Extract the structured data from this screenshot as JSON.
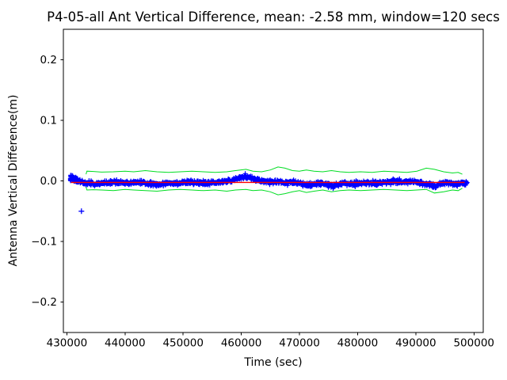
{
  "chart_data": {
    "type": "scatter",
    "title": "P4-05-all Ant Vertical Difference, mean: -2.58 mm, window=120 secs",
    "xlabel": "Time (sec)",
    "ylabel": "Antenna Vertical Difference(m)",
    "xlim": [
      429400,
      501600
    ],
    "ylim": [
      -0.25,
      0.25
    ],
    "xticks": [
      430000,
      440000,
      450000,
      460000,
      470000,
      480000,
      490000,
      500000
    ],
    "yticks": [
      -0.2,
      -0.1,
      0.0,
      0.1,
      0.2
    ],
    "grid": false,
    "legend": "none",
    "stats": {
      "mean_mm": -2.58,
      "window_secs": 120
    },
    "colors": {
      "scatter": "#0000ff",
      "mean_line": "#ff0000",
      "bounds": "#00dd22",
      "axes": "#000000"
    },
    "series": [
      {
        "name": "antenna-vertical-difference",
        "type": "scatter",
        "marker": "+",
        "color": "#0000ff",
        "x_start": 430600,
        "x_end": 498900,
        "noise_std_m": 0.0016,
        "center_keypoints": [
          [
            430600,
            0.005
          ],
          [
            431200,
            0.004
          ],
          [
            431800,
            0.0
          ],
          [
            432600,
            -0.002
          ],
          [
            433400,
            -0.004
          ],
          [
            435000,
            -0.005
          ],
          [
            436800,
            -0.003
          ],
          [
            438300,
            -0.002
          ],
          [
            440000,
            -0.004
          ],
          [
            441500,
            -0.003
          ],
          [
            443000,
            -0.002
          ],
          [
            444500,
            -0.005
          ],
          [
            446000,
            -0.006
          ],
          [
            447500,
            -0.003
          ],
          [
            449000,
            -0.004
          ],
          [
            450500,
            -0.002
          ],
          [
            452000,
            -0.003
          ],
          [
            453500,
            -0.004
          ],
          [
            455000,
            -0.003
          ],
          [
            456500,
            -0.002
          ],
          [
            458000,
            0.0
          ],
          [
            459500,
            0.004
          ],
          [
            460700,
            0.007
          ],
          [
            461800,
            0.004
          ],
          [
            463000,
            0.001
          ],
          [
            464500,
            -0.001
          ],
          [
            466000,
            -0.002
          ],
          [
            467500,
            -0.003
          ],
          [
            469000,
            -0.002
          ],
          [
            470500,
            -0.005
          ],
          [
            471700,
            -0.008
          ],
          [
            473000,
            -0.004
          ],
          [
            474500,
            -0.005
          ],
          [
            475800,
            -0.008
          ],
          [
            477200,
            -0.004
          ],
          [
            478800,
            -0.005
          ],
          [
            480500,
            -0.004
          ],
          [
            482000,
            -0.003
          ],
          [
            483500,
            -0.004
          ],
          [
            485000,
            -0.002
          ],
          [
            486500,
            -0.001
          ],
          [
            488000,
            -0.002
          ],
          [
            489500,
            -0.001
          ],
          [
            491000,
            -0.004
          ],
          [
            492300,
            -0.006
          ],
          [
            493300,
            -0.009
          ],
          [
            494400,
            -0.004
          ],
          [
            495500,
            -0.002
          ],
          [
            496500,
            -0.006
          ],
          [
            497600,
            -0.004
          ],
          [
            498900,
            -0.003
          ]
        ],
        "outliers": [
          [
            432500,
            -0.05
          ]
        ]
      },
      {
        "name": "mean-line",
        "type": "line",
        "color": "#ff0000",
        "value_m": -0.00258,
        "x_start": 430700,
        "x_end": 498400
      },
      {
        "name": "upper-bound",
        "type": "line",
        "color": "#00dd22",
        "points": [
          [
            433300,
            0.011
          ],
          [
            433450,
            0.016
          ],
          [
            434600,
            0.0155
          ],
          [
            436000,
            0.0145
          ],
          [
            438000,
            0.015
          ],
          [
            440000,
            0.016
          ],
          [
            441500,
            0.015
          ],
          [
            443500,
            0.017
          ],
          [
            445500,
            0.015
          ],
          [
            447500,
            0.014
          ],
          [
            449500,
            0.015
          ],
          [
            451500,
            0.016
          ],
          [
            453500,
            0.015
          ],
          [
            455500,
            0.014
          ],
          [
            457500,
            0.015
          ],
          [
            459000,
            0.017
          ],
          [
            460800,
            0.019
          ],
          [
            462000,
            0.016
          ],
          [
            463500,
            0.015
          ],
          [
            465000,
            0.018
          ],
          [
            466300,
            0.023
          ],
          [
            467500,
            0.021
          ],
          [
            468800,
            0.017
          ],
          [
            470000,
            0.016
          ],
          [
            471200,
            0.018
          ],
          [
            472500,
            0.016
          ],
          [
            474000,
            0.015
          ],
          [
            475500,
            0.017
          ],
          [
            477000,
            0.015
          ],
          [
            478500,
            0.014
          ],
          [
            480500,
            0.015
          ],
          [
            482500,
            0.014
          ],
          [
            484500,
            0.016
          ],
          [
            486500,
            0.015
          ],
          [
            488500,
            0.014
          ],
          [
            490200,
            0.016
          ],
          [
            491800,
            0.021
          ],
          [
            493200,
            0.019
          ],
          [
            494800,
            0.015
          ],
          [
            496300,
            0.013
          ],
          [
            497300,
            0.014
          ],
          [
            498000,
            0.011
          ]
        ]
      },
      {
        "name": "lower-bound",
        "type": "line",
        "color": "#00dd22",
        "points": [
          [
            433300,
            -0.01
          ],
          [
            433450,
            -0.015
          ],
          [
            434600,
            -0.0145
          ],
          [
            436000,
            -0.015
          ],
          [
            438000,
            -0.016
          ],
          [
            440000,
            -0.014
          ],
          [
            441500,
            -0.015
          ],
          [
            443500,
            -0.016
          ],
          [
            445500,
            -0.017
          ],
          [
            447500,
            -0.015
          ],
          [
            449500,
            -0.014
          ],
          [
            451500,
            -0.015
          ],
          [
            453500,
            -0.016
          ],
          [
            455500,
            -0.015
          ],
          [
            457500,
            -0.017
          ],
          [
            459000,
            -0.015
          ],
          [
            460800,
            -0.014
          ],
          [
            462000,
            -0.016
          ],
          [
            463500,
            -0.015
          ],
          [
            465000,
            -0.018
          ],
          [
            466300,
            -0.023
          ],
          [
            467500,
            -0.021
          ],
          [
            468800,
            -0.018
          ],
          [
            470000,
            -0.016
          ],
          [
            471200,
            -0.019
          ],
          [
            472500,
            -0.017
          ],
          [
            474000,
            -0.015
          ],
          [
            475500,
            -0.018
          ],
          [
            477000,
            -0.016
          ],
          [
            478500,
            -0.015
          ],
          [
            480500,
            -0.016
          ],
          [
            482500,
            -0.015
          ],
          [
            484500,
            -0.014
          ],
          [
            486500,
            -0.015
          ],
          [
            488500,
            -0.016
          ],
          [
            490200,
            -0.015
          ],
          [
            491800,
            -0.014
          ],
          [
            493200,
            -0.02
          ],
          [
            494800,
            -0.018
          ],
          [
            496300,
            -0.015
          ],
          [
            497300,
            -0.016
          ],
          [
            498000,
            -0.012
          ]
        ]
      }
    ]
  }
}
